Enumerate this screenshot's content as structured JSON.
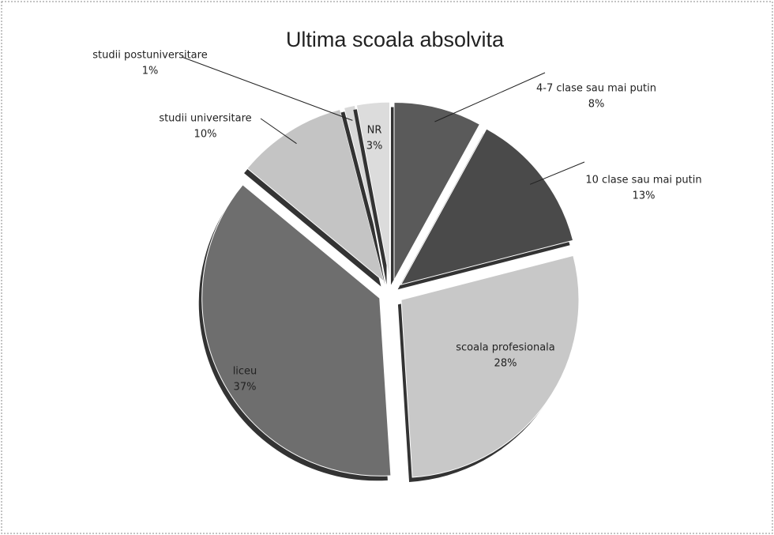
{
  "chart_data": {
    "type": "pie",
    "title": "Ultima scoala absolvita",
    "categories": [
      "4-7 clase sau mai putin",
      "10 clase sau mai putin",
      "scoala profesionala",
      "liceu",
      "studii universitare",
      "studii postuniversitare",
      "NR"
    ],
    "values": [
      8,
      13,
      28,
      37,
      10,
      1,
      3
    ],
    "value_labels": [
      "8%",
      "13%",
      "28%",
      "37%",
      "10%",
      "1%",
      "3%"
    ],
    "colors": [
      "#5a5a5a",
      "#4a4a4a",
      "#c8c8c8",
      "#6e6e6e",
      "#c4c4c4",
      "#d8d8d8",
      "#dcdcdc"
    ]
  }
}
